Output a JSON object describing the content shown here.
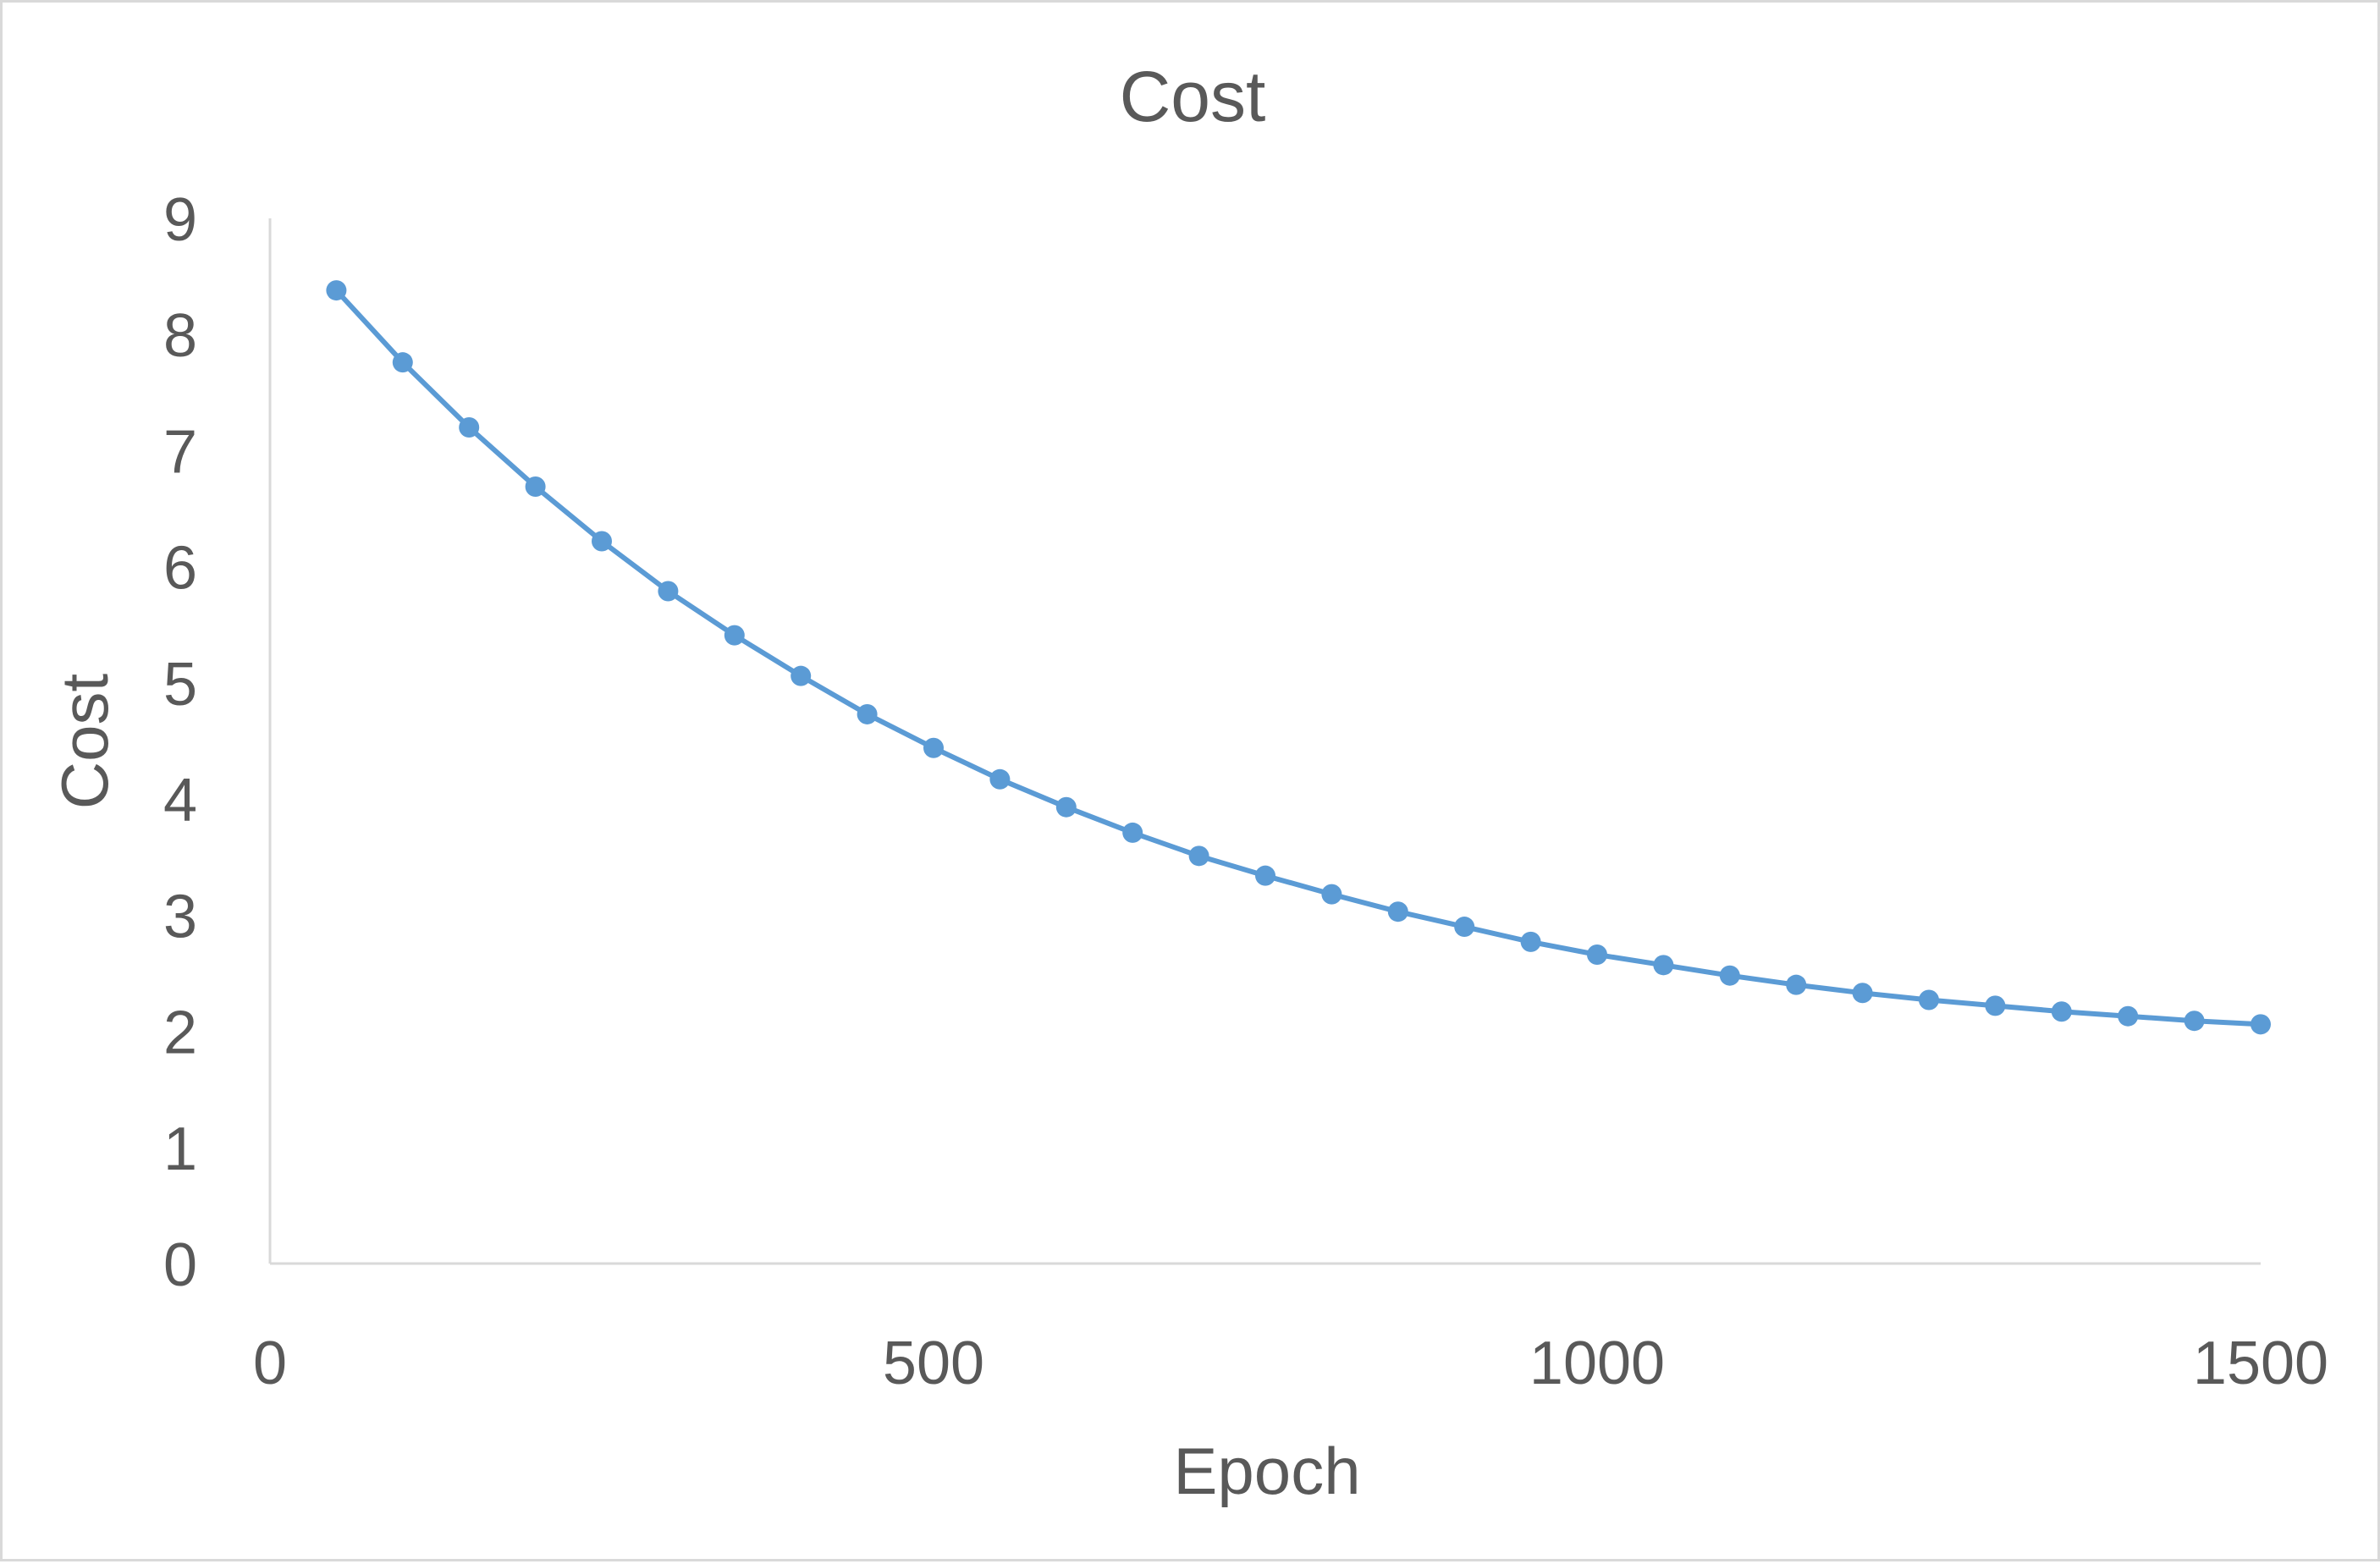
{
  "chart_data": {
    "type": "line",
    "title": "Cost",
    "xlabel": "Epoch",
    "ylabel": "Cost",
    "xlim": [
      0,
      1500
    ],
    "ylim": [
      0,
      9
    ],
    "xticks": [
      "0",
      "500",
      "1000",
      "1500"
    ],
    "yticks": [
      "0",
      "1",
      "2",
      "3",
      "4",
      "5",
      "6",
      "7",
      "8",
      "9"
    ],
    "grid": false,
    "legend": "none",
    "series": [
      {
        "color": "#5b9bd5",
        "marker": "circle",
        "x": [
          50,
          100,
          150,
          200,
          250,
          300,
          350,
          400,
          450,
          500,
          550,
          600,
          650,
          700,
          750,
          800,
          850,
          900,
          950,
          1000,
          1050,
          1100,
          1150,
          1200,
          1250,
          1300,
          1350,
          1400,
          1450,
          1500
        ],
        "y": [
          8.38,
          7.76,
          7.2,
          6.69,
          6.22,
          5.79,
          5.41,
          5.06,
          4.73,
          4.44,
          4.17,
          3.93,
          3.71,
          3.51,
          3.34,
          3.18,
          3.03,
          2.9,
          2.77,
          2.66,
          2.57,
          2.48,
          2.4,
          2.33,
          2.27,
          2.22,
          2.17,
          2.13,
          2.09,
          2.06
        ]
      }
    ]
  }
}
